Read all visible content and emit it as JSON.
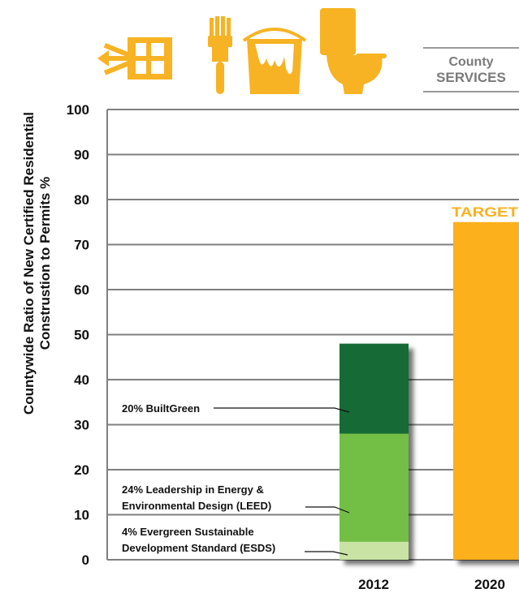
{
  "brand": {
    "line1": "County",
    "line2": "SERVICES"
  },
  "icons": [
    "window-sunburst-icon",
    "paintbrush-icon",
    "paint-bucket-icon",
    "toilet-icon"
  ],
  "colors": {
    "icon": "#f7b323",
    "target": "#fbb01d",
    "builtgreen": "#176b34",
    "leed": "#73bf45",
    "esds": "#c8e3a3",
    "axis": "#7f7f7f"
  },
  "chart_data": {
    "type": "bar",
    "stacked": true,
    "title": "",
    "ylabel_lines": [
      "Countywide Ratio of New Certified Residential",
      "Construstion to Permits %"
    ],
    "xlabel": "",
    "ylim": [
      0,
      100
    ],
    "yticks": [
      0,
      10,
      20,
      30,
      40,
      50,
      60,
      70,
      80,
      90,
      100
    ],
    "grid": true,
    "categories": [
      "2012",
      "2020"
    ],
    "series": [
      {
        "name": "4% Evergreen Sustainable Development Standard (ESDS)",
        "label_lines": [
          "4% Evergreen Sustainable",
          "Development Standard (ESDS)"
        ],
        "category": "2012",
        "values": [
          4,
          null
        ],
        "colorKey": "esds"
      },
      {
        "name": "24% Leadership in Energy & Environmental Design (LEED)",
        "label_lines": [
          "24% Leadership in Energy &",
          "Environmental Design (LEED)"
        ],
        "category": "2012",
        "values": [
          24,
          null
        ],
        "colorKey": "leed"
      },
      {
        "name": "20% BuiltGreen",
        "label_lines": [
          "20% BuiltGreen"
        ],
        "category": "2012",
        "values": [
          20,
          null
        ],
        "colorKey": "builtgreen"
      },
      {
        "name": "TARGET",
        "label_lines": [
          "TARGET"
        ],
        "category": "2020",
        "values": [
          null,
          75
        ],
        "colorKey": "target"
      }
    ]
  }
}
